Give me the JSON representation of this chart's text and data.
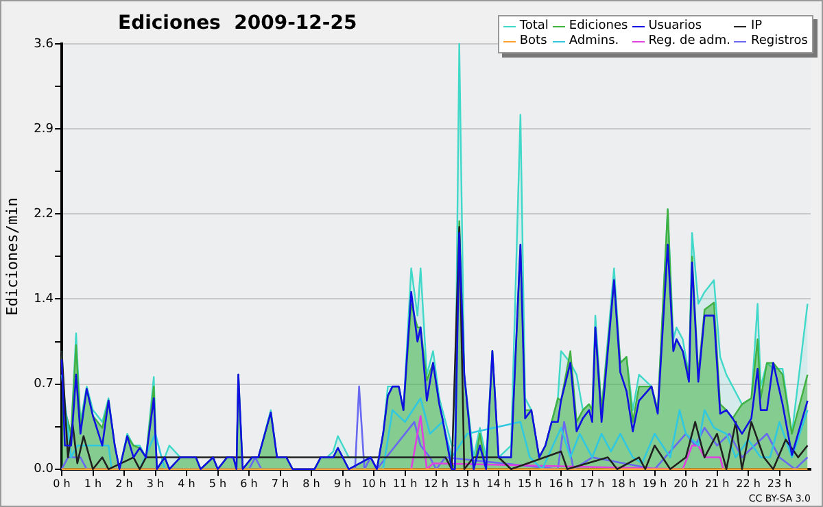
{
  "chart_data": {
    "type": "area",
    "title": "Ediciones  2009-12-25",
    "ylabel": "Ediciones/min",
    "xlim": [
      0,
      24
    ],
    "ylim": [
      0,
      3.6
    ],
    "xticks": [
      {
        "value": 0,
        "label": "0 h"
      },
      {
        "value": 1,
        "label": "1 h"
      },
      {
        "value": 2,
        "label": "2 h"
      },
      {
        "value": 3,
        "label": "3 h"
      },
      {
        "value": 4,
        "label": "4 h"
      },
      {
        "value": 5,
        "label": "5 h"
      },
      {
        "value": 6,
        "label": "6 h"
      },
      {
        "value": 7,
        "label": "7 h"
      },
      {
        "value": 8,
        "label": "8 h"
      },
      {
        "value": 9,
        "label": "9 h"
      },
      {
        "value": 10,
        "label": "10 h"
      },
      {
        "value": 11,
        "label": "11 h"
      },
      {
        "value": 12,
        "label": "12 h"
      },
      {
        "value": 13,
        "label": "13 h"
      },
      {
        "value": 14,
        "label": "14 h"
      },
      {
        "value": 15,
        "label": "15 h"
      },
      {
        "value": 16,
        "label": "16 h"
      },
      {
        "value": 17,
        "label": "17 h"
      },
      {
        "value": 18,
        "label": "18 h"
      },
      {
        "value": 19,
        "label": "19 h"
      },
      {
        "value": 20,
        "label": "20 h"
      },
      {
        "value": 21,
        "label": "21 h"
      },
      {
        "value": 22,
        "label": "22 h"
      },
      {
        "value": 23,
        "label": "23 h"
      }
    ],
    "yticks": [
      {
        "value": 0,
        "label": "0.0"
      },
      {
        "value": 0.36,
        "label": null
      },
      {
        "value": 0.72,
        "label": "0.7"
      },
      {
        "value": 1.08,
        "label": null
      },
      {
        "value": 1.44,
        "label": "1.4"
      },
      {
        "value": 1.8,
        "label": null
      },
      {
        "value": 2.16,
        "label": "2.2"
      },
      {
        "value": 2.52,
        "label": null
      },
      {
        "value": 2.88,
        "label": "2.9"
      },
      {
        "value": 3.24,
        "label": null
      },
      {
        "value": 3.6,
        "label": "3.6"
      }
    ],
    "grid": "y",
    "legend": "top right",
    "marker": "none",
    "annotations": [
      "CC BY-SA 3.0"
    ],
    "series": [
      {
        "name": "Total",
        "color": "#40d8c8",
        "x": [
          0,
          0.1,
          0.3,
          0.46,
          0.6,
          0.8,
          1.0,
          1.3,
          1.5,
          1.7,
          1.85,
          2.1,
          2.3,
          2.5,
          2.7,
          2.95,
          3.05,
          3.3,
          3.45,
          3.8,
          4.3,
          4.45,
          4.85,
          5.0,
          5.3,
          5.5,
          5.6,
          5.66,
          5.8,
          6.1,
          6.3,
          6.7,
          6.9,
          7.2,
          7.4,
          8.1,
          8.3,
          8.5,
          8.7,
          8.85,
          9.2,
          9.9,
          10.1,
          10.3,
          10.45,
          10.6,
          10.8,
          10.95,
          11.2,
          11.4,
          11.5,
          11.7,
          11.9,
          12.1,
          12.2,
          12.5,
          12.6,
          12.74,
          12.9,
          13.2,
          13.4,
          13.6,
          13.8,
          14.0,
          14.4,
          14.7,
          14.85,
          15.05,
          15.3,
          15.5,
          15.7,
          15.9,
          16.0,
          16.3,
          16.5,
          16.7,
          16.9,
          17.0,
          17.1,
          17.3,
          17.7,
          17.9,
          18.1,
          18.3,
          18.5,
          18.9,
          19.1,
          19.42,
          19.6,
          19.7,
          19.9,
          20.1,
          20.2,
          20.4,
          20.6,
          20.9,
          21.1,
          21.3,
          21.5,
          21.8,
          22.1,
          22.3,
          22.4,
          22.6,
          22.8,
          23.1,
          23.4,
          23.9
        ],
        "values": [
          1.0,
          0.5,
          0.3,
          1.15,
          0.4,
          0.7,
          0.5,
          0.4,
          0.6,
          0.2,
          0,
          0.3,
          0.2,
          0.2,
          0.1,
          0.78,
          0,
          0.1,
          0.2,
          0.1,
          0.1,
          0,
          0.1,
          0,
          0.1,
          0.1,
          0,
          0.8,
          0,
          0.1,
          0.1,
          0.5,
          0.1,
          0.1,
          0,
          0,
          0.1,
          0.1,
          0.15,
          0.28,
          0.1,
          0.1,
          0,
          0.3,
          0.7,
          0.7,
          0.7,
          0.5,
          1.7,
          1.3,
          1.7,
          0.8,
          1.0,
          0.6,
          0.5,
          0.2,
          0.2,
          3.6,
          0.8,
          0.1,
          0.35,
          0.1,
          1.0,
          0.1,
          0.2,
          3.0,
          0.6,
          0.5,
          0.1,
          0.2,
          0.4,
          0.6,
          1.0,
          0.9,
          0.8,
          0.5,
          0.55,
          0.5,
          1.3,
          0.5,
          1.7,
          0.9,
          0.95,
          0.5,
          0.8,
          0.7,
          0.5,
          2.2,
          1.1,
          1.2,
          1.1,
          0.8,
          2.0,
          1.4,
          1.5,
          1.6,
          0.95,
          0.8,
          0.7,
          0.55,
          0.6,
          1.4,
          0.7,
          0.9,
          0.85,
          0.85,
          0.3,
          1.4
        ]
      },
      {
        "name": "Ediciones",
        "color": "#40b040",
        "x": [
          0,
          0.1,
          0.3,
          0.46,
          0.6,
          0.8,
          1.0,
          1.3,
          1.5,
          1.7,
          1.85,
          2.1,
          2.3,
          2.5,
          2.7,
          2.95,
          3.05,
          3.3,
          3.45,
          3.8,
          4.3,
          4.45,
          4.85,
          5.0,
          5.3,
          5.5,
          5.6,
          5.66,
          5.8,
          6.1,
          6.3,
          6.7,
          6.9,
          7.2,
          7.4,
          8.1,
          8.3,
          8.5,
          8.7,
          8.85,
          9.2,
          9.9,
          10.1,
          10.3,
          10.45,
          10.6,
          10.8,
          10.95,
          11.2,
          11.4,
          11.5,
          11.7,
          11.9,
          12.1,
          12.2,
          12.5,
          12.6,
          12.74,
          12.9,
          13.2,
          13.4,
          13.6,
          13.8,
          14.0,
          14.4,
          14.7,
          14.85,
          15.05,
          15.3,
          15.5,
          15.7,
          15.9,
          16.0,
          16.3,
          16.5,
          16.7,
          16.9,
          17.0,
          17.1,
          17.3,
          17.7,
          17.9,
          18.1,
          18.3,
          18.5,
          18.9,
          19.1,
          19.42,
          19.6,
          19.7,
          19.9,
          20.1,
          20.2,
          20.4,
          20.6,
          20.9,
          21.1,
          21.3,
          21.5,
          21.8,
          22.1,
          22.3,
          22.4,
          22.6,
          22.8,
          23.1,
          23.4,
          23.9
        ],
        "values": [
          0.95,
          0.5,
          0.3,
          1.05,
          0.35,
          0.68,
          0.45,
          0.35,
          0.58,
          0.2,
          0,
          0.28,
          0.2,
          0.18,
          0.1,
          0.7,
          0,
          0.1,
          0,
          0.1,
          0.1,
          0,
          0.1,
          0,
          0.1,
          0.1,
          0,
          0.8,
          0,
          0.1,
          0.1,
          0.48,
          0.1,
          0.1,
          0,
          0,
          0.1,
          0.1,
          0.1,
          0.18,
          0,
          0.1,
          0,
          0.3,
          0.62,
          0.7,
          0.7,
          0.5,
          1.4,
          1.2,
          1.2,
          0.75,
          0.9,
          0.55,
          0.43,
          0.05,
          0,
          2.1,
          0.8,
          0,
          0.3,
          0,
          1.0,
          0.1,
          0.1,
          1.9,
          0.5,
          0.5,
          0.1,
          0.2,
          0.4,
          0.6,
          0.58,
          1.0,
          0.4,
          0.5,
          0.55,
          0.5,
          1.2,
          0.5,
          1.6,
          0.9,
          0.95,
          0.4,
          0.7,
          0.7,
          0.5,
          2.2,
          1.0,
          1.1,
          1.0,
          0.8,
          1.8,
          0.8,
          1.35,
          1.41,
          0.55,
          0.5,
          0.43,
          0.55,
          0.6,
          1.1,
          0.6,
          0.9,
          0.9,
          0.8,
          0.3,
          0.8
        ]
      },
      {
        "name": "Usuarios",
        "type": "line",
        "color": "#1010e0",
        "x": [
          0,
          0.1,
          0.3,
          0.46,
          0.6,
          0.8,
          1.0,
          1.3,
          1.5,
          1.7,
          1.85,
          2.1,
          2.3,
          2.5,
          2.7,
          2.95,
          3.05,
          3.3,
          3.45,
          3.8,
          4.3,
          4.45,
          4.85,
          5.0,
          5.3,
          5.5,
          5.6,
          5.66,
          5.8,
          6.1,
          6.3,
          6.7,
          6.9,
          7.2,
          7.4,
          8.1,
          8.3,
          8.5,
          8.7,
          8.85,
          9.2,
          9.9,
          10.1,
          10.3,
          10.45,
          10.6,
          10.8,
          10.95,
          11.2,
          11.4,
          11.5,
          11.7,
          11.9,
          12.1,
          12.2,
          12.5,
          12.6,
          12.74,
          12.9,
          13.2,
          13.4,
          13.6,
          13.8,
          14.0,
          14.4,
          14.7,
          14.85,
          15.05,
          15.3,
          15.5,
          15.7,
          15.9,
          16.0,
          16.3,
          16.5,
          16.7,
          16.9,
          17.0,
          17.1,
          17.3,
          17.7,
          17.9,
          18.1,
          18.3,
          18.5,
          18.9,
          19.1,
          19.42,
          19.6,
          19.7,
          19.9,
          20.1,
          20.2,
          20.4,
          20.6,
          20.9,
          21.1,
          21.3,
          21.5,
          21.8,
          22.1,
          22.3,
          22.4,
          22.6,
          22.8,
          23.1,
          23.4,
          23.9
        ],
        "values": [
          0.93,
          0.2,
          0.2,
          0.8,
          0.3,
          0.68,
          0.45,
          0.2,
          0.58,
          0.2,
          0,
          0.28,
          0.1,
          0.18,
          0.1,
          0.6,
          0,
          0.1,
          0,
          0.1,
          0.1,
          0,
          0.1,
          0,
          0.1,
          0.1,
          0,
          0.8,
          0,
          0.1,
          0.1,
          0.48,
          0.1,
          0.1,
          0,
          0,
          0.1,
          0.1,
          0.1,
          0.18,
          0,
          0.1,
          0,
          0.3,
          0.62,
          0.7,
          0.7,
          0.5,
          1.5,
          1.08,
          1.2,
          0.58,
          0.9,
          0.55,
          0.43,
          0,
          0,
          2.0,
          0.8,
          0,
          0.2,
          0,
          1.0,
          0.1,
          0.1,
          1.9,
          0.43,
          0.5,
          0.1,
          0.2,
          0.4,
          0.4,
          0.58,
          0.9,
          0.32,
          0.43,
          0.5,
          0.4,
          1.2,
          0.4,
          1.6,
          0.82,
          0.66,
          0.32,
          0.58,
          0.7,
          0.47,
          1.9,
          1.0,
          1.1,
          1.0,
          0.74,
          1.75,
          0.74,
          1.3,
          1.3,
          0.47,
          0.5,
          0.43,
          0.3,
          0.43,
          0.85,
          0.5,
          0.5,
          0.9,
          0.55,
          0.12,
          0.58
        ]
      },
      {
        "name": "IP",
        "type": "line",
        "color": "#202020",
        "x": [
          0,
          0.2,
          0.35,
          0.5,
          0.7,
          1.0,
          1.3,
          1.5,
          2.3,
          2.5,
          2.7,
          12.3,
          12.5,
          12.74,
          12.9,
          13.2,
          14.0,
          14.4,
          16.0,
          16.2,
          17.5,
          17.8,
          18.5,
          18.7,
          19.0,
          19.5,
          20.0,
          20.3,
          20.6,
          21.0,
          21.3,
          21.6,
          21.8,
          22.1,
          22.5,
          22.8,
          23.2,
          23.6,
          23.9
        ],
        "values": [
          1.0,
          0.1,
          0.38,
          0.05,
          0.28,
          0,
          0.1,
          0,
          0.1,
          0,
          0.1,
          0.1,
          0,
          2.05,
          0,
          0.1,
          0.1,
          0,
          0.15,
          0,
          0.1,
          0,
          0.1,
          0,
          0.2,
          0,
          0.1,
          0.4,
          0.1,
          0.3,
          0,
          0.4,
          0,
          0.4,
          0.1,
          0,
          0.25,
          0.1,
          0.2
        ]
      },
      {
        "name": "Bots",
        "type": "line",
        "color": "#ffa030",
        "x": [
          0,
          23.9
        ],
        "values": [
          0,
          0
        ]
      },
      {
        "name": "Admins.",
        "type": "line",
        "color": "#30c8e0",
        "x": [
          0,
          0.3,
          0.5,
          0.8,
          1.2,
          1.5,
          1.6,
          2.5,
          3.0,
          3.3,
          10.3,
          10.6,
          11.0,
          11.5,
          11.8,
          12.2,
          12.5,
          13.0,
          14.7,
          15.0,
          15.4,
          16.0,
          16.3,
          16.6,
          17.0,
          17.3,
          17.6,
          17.9,
          18.3,
          18.6,
          19.0,
          19.5,
          19.8,
          20.0,
          20.4,
          20.6,
          20.9,
          21.3,
          21.6,
          22.0,
          22.4,
          22.7,
          23.0,
          23.4,
          23.9
        ],
        "values": [
          0.8,
          0.1,
          0.2,
          0.2,
          0.2,
          0.2,
          0,
          0,
          0.3,
          0,
          0,
          0.5,
          0.4,
          0.6,
          0.3,
          0.4,
          0.1,
          0.3,
          0.4,
          0.1,
          0,
          0.35,
          0.1,
          0.3,
          0.1,
          0.3,
          0.15,
          0.3,
          0.1,
          0.05,
          0.3,
          0.1,
          0.5,
          0.3,
          0.2,
          0.5,
          0.35,
          0.3,
          0.1,
          0.25,
          0.1,
          0.1,
          0.4,
          0.1,
          0.5
        ]
      },
      {
        "name": "Reg. de adm.",
        "type": "line",
        "color": "#e040e0",
        "x": [
          11.2,
          11.5,
          11.7,
          11.9,
          19.9,
          20.2,
          20.4,
          20.6,
          21.1,
          21.2
        ],
        "values": [
          0,
          0.45,
          0,
          0.05,
          0,
          0.2,
          0.2,
          0.1,
          0.1,
          0
        ]
      },
      {
        "name": "Registros",
        "type": "line",
        "color": "#6868f0",
        "x": [
          0,
          0.2,
          0.6,
          0.8,
          1.0,
          6.0,
          6.2,
          6.4,
          9.4,
          9.53,
          9.7,
          9.9,
          10.1,
          11.3,
          11.5,
          11.8,
          12.0,
          12.3,
          15.9,
          16.1,
          16.4,
          17.0,
          19.0,
          20.0,
          20.3,
          20.6,
          21.0,
          21.4,
          21.8,
          22.2,
          22.6,
          23.0,
          23.5,
          23.9
        ],
        "values": [
          0,
          0.1,
          0.1,
          0,
          0,
          0,
          0.1,
          0,
          0,
          0.7,
          0,
          0.1,
          0,
          0.4,
          0.2,
          0.1,
          0,
          0.1,
          0,
          0.4,
          0,
          0.1,
          0,
          0.3,
          0.2,
          0.35,
          0.2,
          0.3,
          0.1,
          0.2,
          0.3,
          0.1,
          0,
          0.1
        ]
      }
    ]
  }
}
